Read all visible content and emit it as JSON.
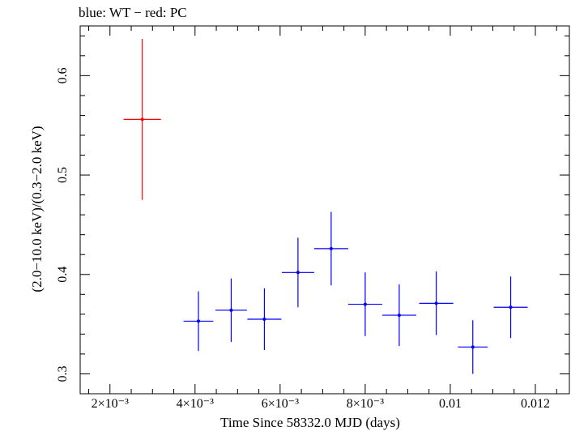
{
  "chart_data": {
    "type": "scatter",
    "title": "blue: WT − red: PC",
    "xlabel": "Time Since 58332.0 MJD (days)",
    "ylabel": "(2.0−10.0 keV)/(0.3−2.0 keV)",
    "xlim": [
      0.0013,
      0.0128
    ],
    "ylim": [
      0.28,
      0.65
    ],
    "x_ticks": [
      {
        "value": 0.002,
        "label": "2×10⁻³"
      },
      {
        "value": 0.004,
        "label": "4×10⁻³"
      },
      {
        "value": 0.006,
        "label": "6×10⁻³"
      },
      {
        "value": 0.008,
        "label": "8×10⁻³"
      },
      {
        "value": 0.01,
        "label": "0.01"
      },
      {
        "value": 0.012,
        "label": "0.012"
      }
    ],
    "y_ticks": [
      {
        "value": 0.3,
        "label": "0.3"
      },
      {
        "value": 0.4,
        "label": "0.4"
      },
      {
        "value": 0.5,
        "label": "0.5"
      },
      {
        "value": 0.6,
        "label": "0.6"
      }
    ],
    "grid": false,
    "series": [
      {
        "name": "PC",
        "color": "#ff0000",
        "points": [
          {
            "x": 0.00276,
            "xerr": 0.00044,
            "y": 0.556,
            "yerr": 0.081
          }
        ]
      },
      {
        "name": "WT",
        "color": "#0000ff",
        "points": [
          {
            "x": 0.00408,
            "xerr": 0.00035,
            "y": 0.353,
            "yerr": 0.03
          },
          {
            "x": 0.00485,
            "xerr": 0.00037,
            "y": 0.364,
            "yerr": 0.032
          },
          {
            "x": 0.00563,
            "xerr": 0.0004,
            "y": 0.355,
            "yerr": 0.031
          },
          {
            "x": 0.00642,
            "xerr": 0.00038,
            "y": 0.402,
            "yerr": 0.035
          },
          {
            "x": 0.0072,
            "xerr": 0.0004,
            "y": 0.426,
            "yerr": 0.037
          },
          {
            "x": 0.008,
            "xerr": 0.0004,
            "y": 0.37,
            "yerr": 0.032
          },
          {
            "x": 0.0088,
            "xerr": 0.0004,
            "y": 0.359,
            "yerr": 0.031
          },
          {
            "x": 0.00967,
            "xerr": 0.0004,
            "y": 0.371,
            "yerr": 0.032
          },
          {
            "x": 0.01053,
            "xerr": 0.00035,
            "y": 0.327,
            "yerr": 0.027
          },
          {
            "x": 0.01142,
            "xerr": 0.0004,
            "y": 0.367,
            "yerr": 0.031
          }
        ]
      }
    ]
  }
}
